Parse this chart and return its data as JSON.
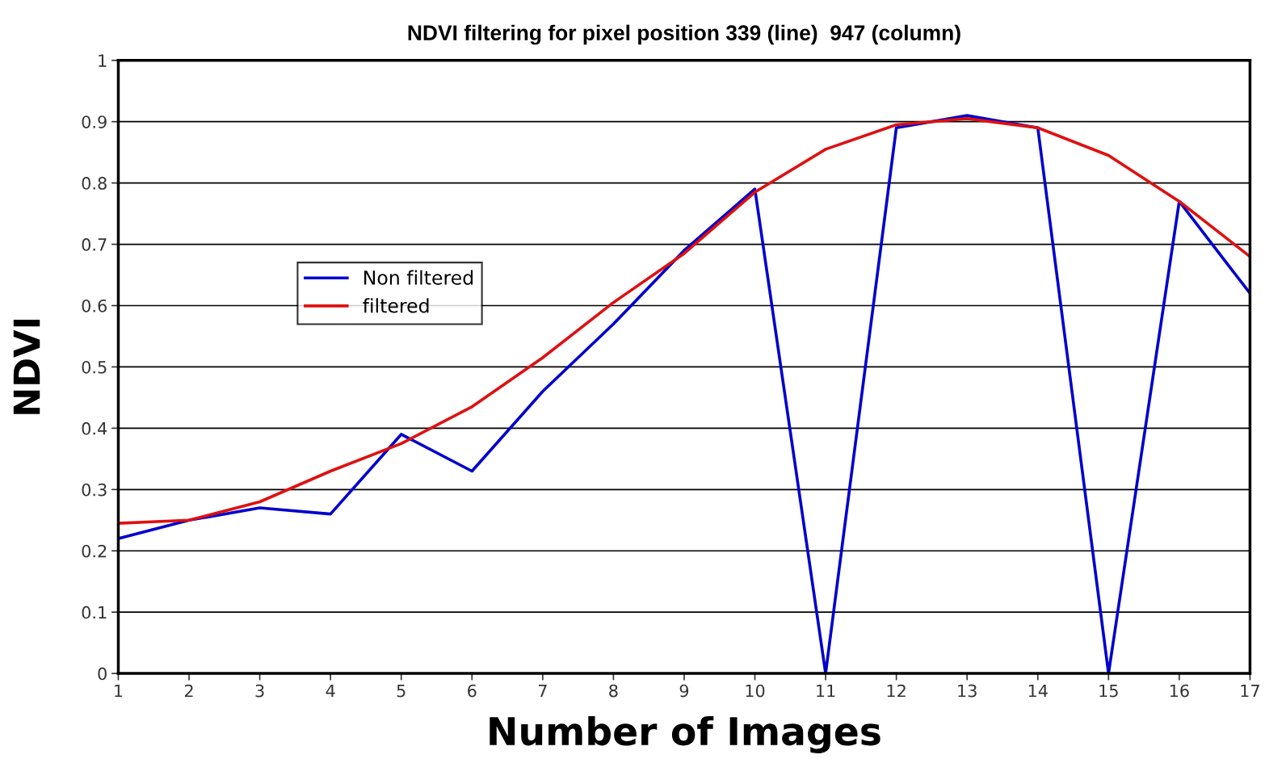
{
  "chart_data": {
    "type": "line",
    "title": "NDVI filtering for pixel position 339 (line)  947 (column)",
    "xlabel": "Number of Images",
    "ylabel": "NDVI",
    "x": [
      1,
      2,
      3,
      4,
      5,
      6,
      7,
      8,
      9,
      10,
      11,
      12,
      13,
      14,
      15,
      16,
      17
    ],
    "series": [
      {
        "name": "Non filtered",
        "color": "#0000cc",
        "values": [
          0.22,
          0.25,
          0.27,
          0.26,
          0.39,
          0.33,
          0.46,
          0.57,
          0.69,
          0.79,
          0,
          0.89,
          0.91,
          0.89,
          0,
          0.77,
          0.62
        ]
      },
      {
        "name": "filtered",
        "color": "#dd1111",
        "values": [
          0.245,
          0.25,
          0.28,
          0.33,
          0.375,
          0.435,
          0.515,
          0.605,
          0.685,
          0.785,
          0.855,
          0.895,
          0.905,
          0.89,
          0.845,
          0.77,
          0.68
        ]
      }
    ],
    "xlim": [
      1,
      17
    ],
    "xticks": [
      1,
      2,
      3,
      4,
      5,
      6,
      7,
      8,
      9,
      10,
      11,
      12,
      13,
      14,
      15,
      16,
      17
    ],
    "ylim": [
      0,
      1
    ],
    "yticks": [
      0,
      0.1,
      0.2,
      0.3,
      0.4,
      0.5,
      0.6,
      0.7,
      0.8,
      0.9,
      1
    ],
    "grid": "y",
    "legend": "center left",
    "marker": "none",
    "line_style": "solid"
  }
}
